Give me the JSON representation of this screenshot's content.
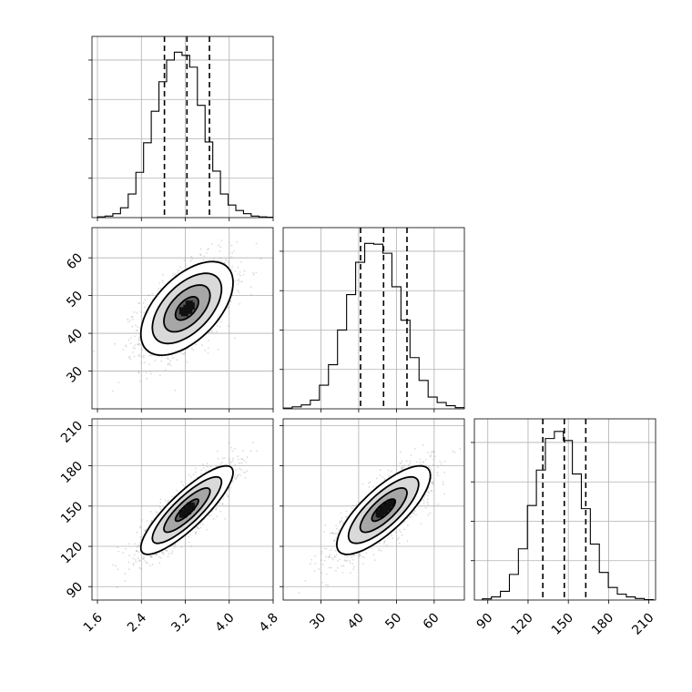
{
  "chart_data": {
    "type": "corner",
    "parameters": [
      {
        "id": "p0",
        "range": [
          1.5,
          4.8
        ],
        "ticks": [
          1.6,
          2.4,
          3.2,
          4.0,
          4.8
        ],
        "tick_labels": [
          "1.6",
          "2.4",
          "3.2",
          "4.0",
          "4.8"
        ],
        "quantiles": [
          2.82,
          3.23,
          3.64
        ],
        "hist_bin_edges": [
          1.6,
          1.74,
          1.88,
          2.02,
          2.16,
          2.3,
          2.44,
          2.58,
          2.72,
          2.86,
          3.0,
          3.14,
          3.28,
          3.42,
          3.56,
          3.7,
          3.84,
          3.98,
          4.12,
          4.26,
          4.4,
          4.54,
          4.68,
          4.82
        ],
        "hist_counts": [
          2,
          4,
          10,
          25,
          60,
          115,
          190,
          270,
          345,
          400,
          420,
          412,
          382,
          285,
          192,
          118,
          60,
          32,
          18,
          10,
          4,
          2,
          1
        ],
        "hist_ylim": [
          0,
          460
        ]
      },
      {
        "id": "p1",
        "range": [
          20,
          68
        ],
        "ticks": [
          30,
          40,
          50,
          60
        ],
        "tick_labels": [
          "30",
          "40",
          "50",
          "60"
        ],
        "quantiles": [
          40.5,
          46.6,
          52.8
        ],
        "hist_bin_edges": [
          20,
          22.4,
          24.8,
          27.2,
          29.6,
          32.0,
          34.4,
          36.8,
          39.2,
          41.6,
          44.0,
          46.4,
          48.8,
          51.2,
          53.6,
          56.0,
          58.4,
          60.8,
          63.2,
          65.6,
          68.0
        ],
        "hist_counts": [
          2,
          5,
          10,
          22,
          60,
          112,
          200,
          290,
          372,
          420,
          418,
          395,
          310,
          225,
          130,
          72,
          30,
          16,
          8,
          3
        ],
        "hist_ylim": [
          0,
          460
        ]
      },
      {
        "id": "p2",
        "range": [
          80,
          215
        ],
        "ticks": [
          90,
          120,
          150,
          180,
          210
        ],
        "tick_labels": [
          "90",
          "120",
          "150",
          "180",
          "210"
        ],
        "quantiles": [
          131,
          147,
          163
        ],
        "hist_bin_edges": [
          86,
          92.7,
          99.4,
          106.1,
          112.8,
          119.5,
          126.2,
          132.9,
          139.6,
          146.3,
          153.0,
          159.7,
          166.4,
          173.1,
          179.8,
          186.5,
          193.2,
          199.9,
          206.6,
          213.3
        ],
        "hist_counts": [
          3,
          8,
          22,
          65,
          130,
          240,
          330,
          410,
          428,
          405,
          320,
          232,
          142,
          70,
          32,
          15,
          8,
          4,
          1
        ],
        "hist_ylim": [
          0,
          460
        ]
      }
    ],
    "pairs": [
      {
        "x": 0,
        "y": 1,
        "mean": [
          3.23,
          46.6
        ],
        "sigma": [
          0.42,
          6.2
        ],
        "rho": 0.55,
        "contour_levels_sigma": [
          0.5,
          1.0,
          1.5,
          2.0
        ],
        "scatter_points": 1600
      },
      {
        "x": 0,
        "y": 2,
        "mean": [
          3.23,
          147
        ],
        "sigma": [
          0.42,
          16.5
        ],
        "rho": 0.85,
        "contour_levels_sigma": [
          0.5,
          1.0,
          1.5,
          2.0
        ],
        "scatter_points": 1600
      },
      {
        "x": 1,
        "y": 2,
        "mean": [
          46.6,
          147
        ],
        "sigma": [
          6.2,
          16.5
        ],
        "rho": 0.78,
        "contour_levels_sigma": [
          0.5,
          1.0,
          1.5,
          2.0
        ],
        "scatter_points": 1600
      }
    ],
    "grid": true,
    "line_color": "#000000",
    "grid_color": "#b0b0b0",
    "scatter_color": "#7f7f7f"
  }
}
